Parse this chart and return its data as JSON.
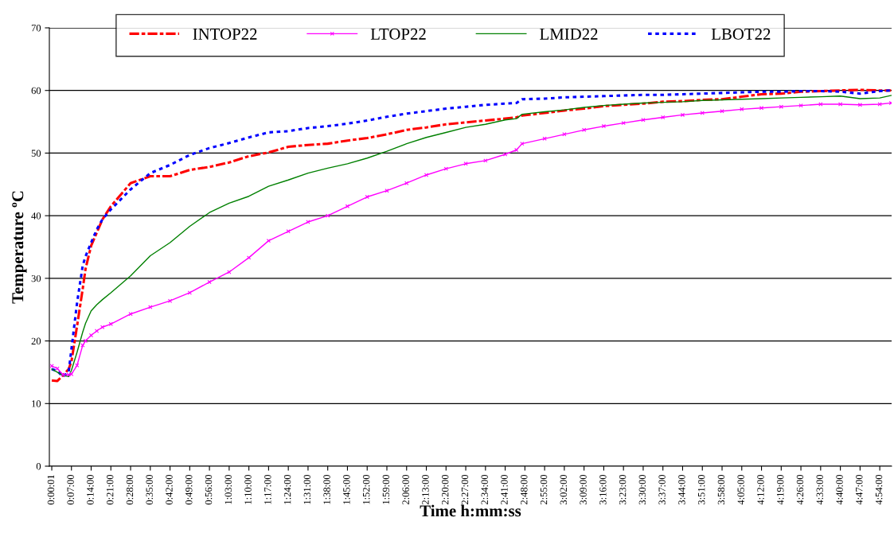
{
  "chart_data": {
    "type": "line",
    "xlabel": "Time h:mm:ss",
    "ylabel": "Temperature ºC",
    "x": [
      0.0003,
      0.0333,
      0.0667,
      0.1,
      0.1167,
      0.15,
      0.1833,
      0.2,
      0.2333,
      0.2667,
      0.3,
      0.35,
      0.4667,
      0.5833,
      0.7,
      0.8167,
      0.9333,
      1.05,
      1.1667,
      1.2833,
      1.4,
      1.5167,
      1.6333,
      1.75,
      1.8667,
      1.9833,
      2.1,
      2.2167,
      2.3333,
      2.45,
      2.5667,
      2.6833,
      2.75,
      2.7833,
      2.9167,
      3.0333,
      3.15,
      3.2667,
      3.3833,
      3.5,
      3.6167,
      3.7333,
      3.85,
      3.9667,
      4.0833,
      4.2,
      4.3167,
      4.4333,
      4.55,
      4.6667,
      4.7833,
      4.9,
      4.9667
    ],
    "series": [
      {
        "name": "INTOP22",
        "color": "#ff0000",
        "line_style": "dashed",
        "marker": "none",
        "values": [
          13.7,
          13.6,
          14.5,
          15.5,
          16.7,
          22.4,
          28.3,
          31.5,
          35.2,
          37.3,
          39.4,
          41.5,
          45.2,
          46.3,
          46.3,
          47.3,
          47.8,
          48.5,
          49.5,
          50.1,
          51,
          51.3,
          51.5,
          52,
          52.4,
          53,
          53.7,
          54.1,
          54.6,
          54.9,
          55.2,
          55.5,
          55.7,
          56,
          56.4,
          56.8,
          57.1,
          57.5,
          57.7,
          57.9,
          58.2,
          58.3,
          58.5,
          58.6,
          59,
          59.4,
          59.5,
          59.8,
          59.9,
          60,
          60.1,
          60,
          60
        ]
      },
      {
        "name": "LTOP22",
        "color": "#ff00ff",
        "line_style": "solid",
        "marker": "cross",
        "values": [
          16,
          15.6,
          14.6,
          14.6,
          14.7,
          16.1,
          19.3,
          20,
          20.9,
          21.6,
          22.2,
          22.7,
          24.3,
          25.4,
          26.4,
          27.7,
          29.4,
          31,
          33.3,
          36,
          37.5,
          39,
          40,
          41.5,
          43,
          44,
          45.2,
          46.5,
          47.5,
          48.3,
          48.8,
          49.8,
          50.5,
          51.5,
          52.3,
          53,
          53.7,
          54.3,
          54.8,
          55.3,
          55.7,
          56.1,
          56.4,
          56.7,
          57,
          57.2,
          57.4,
          57.6,
          57.8,
          57.8,
          57.7,
          57.8,
          58
        ]
      },
      {
        "name": "LMID22",
        "color": "#008000",
        "line_style": "solid",
        "marker": "none",
        "values": [
          15.5,
          15,
          14.5,
          14.3,
          15.3,
          18.2,
          21.4,
          22.8,
          24.8,
          25.8,
          26.6,
          27.7,
          30.4,
          33.6,
          35.7,
          38.3,
          40.5,
          42,
          43.1,
          44.7,
          45.7,
          46.8,
          47.6,
          48.3,
          49.2,
          50.3,
          51.5,
          52.5,
          53.3,
          54.1,
          54.6,
          55.3,
          55.5,
          56.2,
          56.6,
          56.9,
          57.3,
          57.6,
          57.8,
          58,
          58.1,
          58.2,
          58.4,
          58.5,
          58.6,
          58.7,
          58.8,
          58.9,
          59,
          59.1,
          58.7,
          58.8,
          59.2
        ]
      },
      {
        "name": "LBOT22",
        "color": "#0000ff",
        "line_style": "dotted",
        "marker": "none",
        "values": [
          15.5,
          15.2,
          14.3,
          15,
          18.7,
          26.1,
          32,
          33.5,
          35.7,
          37.8,
          39.4,
          41,
          44.2,
          46.8,
          48.1,
          49.7,
          50.8,
          51.6,
          52.5,
          53.3,
          53.5,
          54,
          54.3,
          54.7,
          55.2,
          55.8,
          56.3,
          56.7,
          57.1,
          57.4,
          57.7,
          57.9,
          58,
          58.6,
          58.7,
          58.9,
          59,
          59.1,
          59.2,
          59.3,
          59.3,
          59.4,
          59.5,
          59.6,
          59.7,
          59.8,
          59.8,
          59.9,
          59.9,
          59.8,
          59.5,
          59.9,
          60
        ]
      }
    ],
    "xlim": [
      -0.014,
      4.97
    ],
    "xticks": [
      {
        "value": 0.0003,
        "label": "0:00:01"
      },
      {
        "value": 0.1167,
        "label": "0:07:00"
      },
      {
        "value": 0.2333,
        "label": "0:14:00"
      },
      {
        "value": 0.35,
        "label": "0:21:00"
      },
      {
        "value": 0.4667,
        "label": "0:28:00"
      },
      {
        "value": 0.5833,
        "label": "0:35:00"
      },
      {
        "value": 0.7,
        "label": "0:42:00"
      },
      {
        "value": 0.8167,
        "label": "0:49:00"
      },
      {
        "value": 0.9333,
        "label": "0:56:00"
      },
      {
        "value": 1.05,
        "label": "1:03:00"
      },
      {
        "value": 1.1667,
        "label": "1:10:00"
      },
      {
        "value": 1.2833,
        "label": "1:17:00"
      },
      {
        "value": 1.4,
        "label": "1:24:00"
      },
      {
        "value": 1.5167,
        "label": "1:31:00"
      },
      {
        "value": 1.6333,
        "label": "1:38:00"
      },
      {
        "value": 1.75,
        "label": "1:45:00"
      },
      {
        "value": 1.8667,
        "label": "1:52:00"
      },
      {
        "value": 1.9833,
        "label": "1:59:00"
      },
      {
        "value": 2.1,
        "label": "2:06:00"
      },
      {
        "value": 2.2167,
        "label": "2:13:00"
      },
      {
        "value": 2.3333,
        "label": "2:20:00"
      },
      {
        "value": 2.45,
        "label": "2:27:00"
      },
      {
        "value": 2.5667,
        "label": "2:34:00"
      },
      {
        "value": 2.6833,
        "label": "2:41:00"
      },
      {
        "value": 2.8,
        "label": "2:48:00"
      },
      {
        "value": 2.9167,
        "label": "2:55:00"
      },
      {
        "value": 3.0333,
        "label": "3:02:00"
      },
      {
        "value": 3.15,
        "label": "3:09:00"
      },
      {
        "value": 3.2667,
        "label": "3:16:00"
      },
      {
        "value": 3.3833,
        "label": "3:23:00"
      },
      {
        "value": 3.5,
        "label": "3:30:00"
      },
      {
        "value": 3.6167,
        "label": "3:37:00"
      },
      {
        "value": 3.7333,
        "label": "3:44:00"
      },
      {
        "value": 3.85,
        "label": "3:51:00"
      },
      {
        "value": 3.9667,
        "label": "3:58:00"
      },
      {
        "value": 4.0833,
        "label": "4:05:00"
      },
      {
        "value": 4.2,
        "label": "4:12:00"
      },
      {
        "value": 4.3167,
        "label": "4:19:00"
      },
      {
        "value": 4.4333,
        "label": "4:26:00"
      },
      {
        "value": 4.55,
        "label": "4:33:00"
      },
      {
        "value": 4.6667,
        "label": "4:40:00"
      },
      {
        "value": 4.7833,
        "label": "4:47:00"
      },
      {
        "value": 4.9,
        "label": "4:54:00"
      }
    ],
    "ylim": [
      0,
      70
    ],
    "yticks": [
      0,
      10,
      20,
      30,
      40,
      50,
      60,
      70
    ],
    "grid": "y",
    "legend": "top"
  }
}
